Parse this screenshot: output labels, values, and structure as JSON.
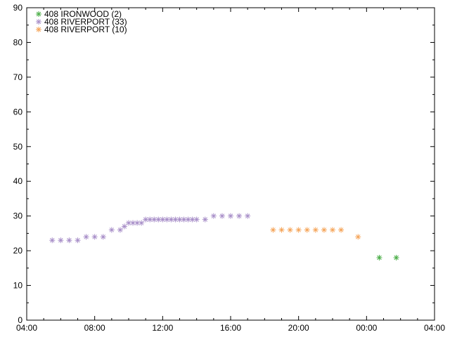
{
  "chart_data": {
    "type": "scatter",
    "title": "",
    "xlabel": "",
    "ylabel": "",
    "x_axis": {
      "type": "time",
      "range": [
        "04:00",
        "28:00"
      ],
      "tick_labels": [
        "04:00",
        "08:00",
        "12:00",
        "16:00",
        "20:00",
        "00:00",
        "04:00"
      ]
    },
    "y_axis": {
      "range": [
        0,
        90
      ],
      "tick_labels": [
        "0",
        "10",
        "20",
        "30",
        "40",
        "50",
        "60",
        "70",
        "80",
        "90"
      ]
    },
    "grid": false,
    "legend": {
      "placement": "top-left"
    },
    "marker": "*",
    "series": [
      {
        "name": "408 IRONWOOD (2)",
        "color": "#4daf4a",
        "x": [
          "24:45",
          "25:45"
        ],
        "y": [
          18,
          18
        ]
      },
      {
        "name": "408 RIVERPORT (33)",
        "color": "#a990c9",
        "x": [
          "05:30",
          "06:00",
          "06:30",
          "07:00",
          "07:30",
          "08:00",
          "08:30",
          "09:00",
          "09:30",
          "09:45",
          "10:00",
          "10:15",
          "10:30",
          "10:45",
          "11:00",
          "11:15",
          "11:30",
          "11:45",
          "12:00",
          "12:15",
          "12:30",
          "12:45",
          "13:00",
          "13:15",
          "13:30",
          "13:45",
          "14:00",
          "14:30",
          "15:00",
          "15:30",
          "16:00",
          "16:30",
          "17:00"
        ],
        "y": [
          23,
          23,
          23,
          23,
          24,
          24,
          24,
          26,
          26,
          27,
          28,
          28,
          28,
          28,
          29,
          29,
          29,
          29,
          29,
          29,
          29,
          29,
          29,
          29,
          29,
          29,
          29,
          29,
          30,
          30,
          30,
          30,
          30
        ]
      },
      {
        "name": "408 RIVERPORT (10)",
        "color": "#f5a55a",
        "x": [
          "18:30",
          "19:00",
          "19:30",
          "20:00",
          "20:30",
          "21:00",
          "21:30",
          "22:00",
          "22:30",
          "23:30"
        ],
        "y": [
          26,
          26,
          26,
          26,
          26,
          26,
          26,
          26,
          26,
          24
        ]
      }
    ]
  }
}
